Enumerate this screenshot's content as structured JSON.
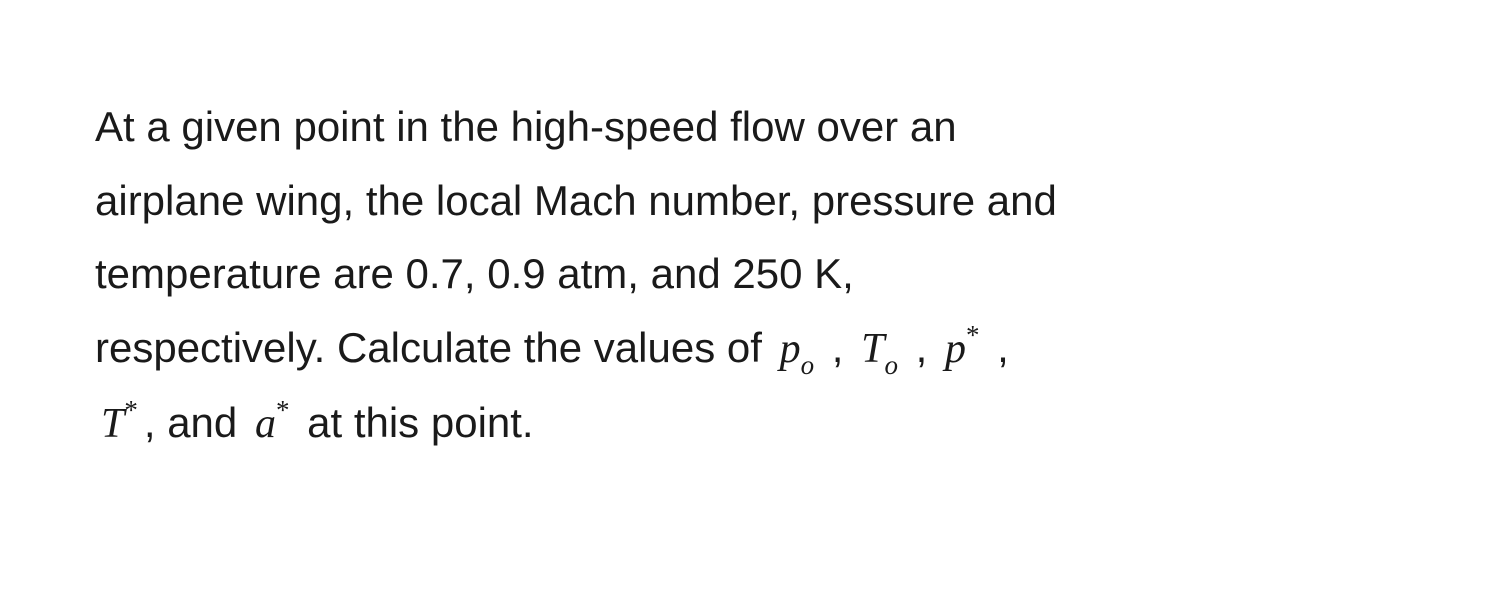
{
  "problem": {
    "line1": "At a given point in the high-speed flow over an",
    "line2": "airplane wing, the local Mach number, pressure and",
    "line3": "temperature are 0.7, 0.9 atm, and 250 K,",
    "line4_part1": "respectively. Calculate the values of ",
    "line5_part2": ", and ",
    "line5_part3": " at this point.",
    "comma": " , ",
    "vars": {
      "p_o": {
        "base": "p",
        "sub": "o"
      },
      "T_o": {
        "base": "T",
        "sub": "o"
      },
      "p_star": {
        "base": "p",
        "sup": "*"
      },
      "T_star": {
        "base": "T",
        "sup": "*"
      },
      "a_star": {
        "base": "a",
        "sup": "*"
      }
    },
    "font_color": "#1a1a1a",
    "background_color": "#ffffff",
    "body_fontsize": 42,
    "subscript_fontsize": 27,
    "line_height": 1.75
  }
}
